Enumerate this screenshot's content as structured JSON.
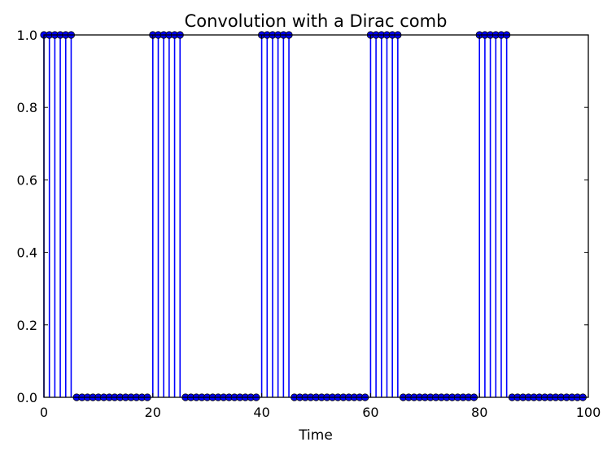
{
  "chart_data": {
    "type": "stem",
    "title": "Convolution with a Dirac comb",
    "xlabel": "Time",
    "ylabel": "",
    "xlim": [
      0,
      100
    ],
    "ylim": [
      0,
      1.0
    ],
    "xticks": [
      0,
      20,
      40,
      60,
      80,
      100
    ],
    "xtick_labels": [
      "0",
      "20",
      "40",
      "60",
      "80",
      "100"
    ],
    "yticks": [
      0.0,
      0.2,
      0.4,
      0.6,
      0.8,
      1.0
    ],
    "ytick_labels": [
      "0.0",
      "0.2",
      "0.4",
      "0.6",
      "0.8",
      "1.0"
    ],
    "grid": false,
    "legend": false,
    "series_color": "#0000ff",
    "x": [
      0,
      1,
      2,
      3,
      4,
      5,
      6,
      7,
      8,
      9,
      10,
      11,
      12,
      13,
      14,
      15,
      16,
      17,
      18,
      19,
      20,
      21,
      22,
      23,
      24,
      25,
      26,
      27,
      28,
      29,
      30,
      31,
      32,
      33,
      34,
      35,
      36,
      37,
      38,
      39,
      40,
      41,
      42,
      43,
      44,
      45,
      46,
      47,
      48,
      49,
      50,
      51,
      52,
      53,
      54,
      55,
      56,
      57,
      58,
      59,
      60,
      61,
      62,
      63,
      64,
      65,
      66,
      67,
      68,
      69,
      70,
      71,
      72,
      73,
      74,
      75,
      76,
      77,
      78,
      79,
      80,
      81,
      82,
      83,
      84,
      85,
      86,
      87,
      88,
      89,
      90,
      91,
      92,
      93,
      94,
      95,
      96,
      97,
      98,
      99
    ],
    "y": [
      1,
      1,
      1,
      1,
      1,
      1,
      0,
      0,
      0,
      0,
      0,
      0,
      0,
      0,
      0,
      0,
      0,
      0,
      0,
      0,
      1,
      1,
      1,
      1,
      1,
      1,
      0,
      0,
      0,
      0,
      0,
      0,
      0,
      0,
      0,
      0,
      0,
      0,
      0,
      0,
      1,
      1,
      1,
      1,
      1,
      1,
      0,
      0,
      0,
      0,
      0,
      0,
      0,
      0,
      0,
      0,
      0,
      0,
      0,
      0,
      1,
      1,
      1,
      1,
      1,
      1,
      0,
      0,
      0,
      0,
      0,
      0,
      0,
      0,
      0,
      0,
      0,
      0,
      0,
      0,
      1,
      1,
      1,
      1,
      1,
      1,
      0,
      0,
      0,
      0,
      0,
      0,
      0,
      0,
      0,
      0,
      0,
      0,
      0,
      0
    ]
  }
}
